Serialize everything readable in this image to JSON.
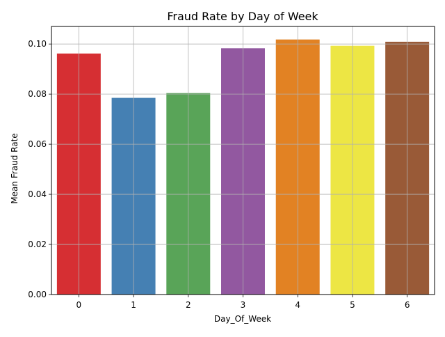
{
  "chart_data": {
    "type": "bar",
    "title": "Fraud Rate by Day of Week",
    "xlabel": "Day_Of_Week",
    "ylabel": "Mean Fraud Rate",
    "categories": [
      "0",
      "1",
      "2",
      "3",
      "4",
      "5",
      "6"
    ],
    "values": [
      0.0962,
      0.0785,
      0.0804,
      0.0983,
      0.1018,
      0.0993,
      0.1009
    ],
    "colors": [
      "#d62f33",
      "#4580b3",
      "#59a458",
      "#9258a0",
      "#e28223",
      "#ede644",
      "#995a37"
    ],
    "ylim": [
      0,
      0.107
    ],
    "yticks": [
      "0.00",
      "0.02",
      "0.04",
      "0.06",
      "0.08",
      "0.10"
    ],
    "ytick_values": [
      0.0,
      0.02,
      0.04,
      0.06,
      0.08,
      0.1
    ],
    "grid": true,
    "legend": "none"
  }
}
